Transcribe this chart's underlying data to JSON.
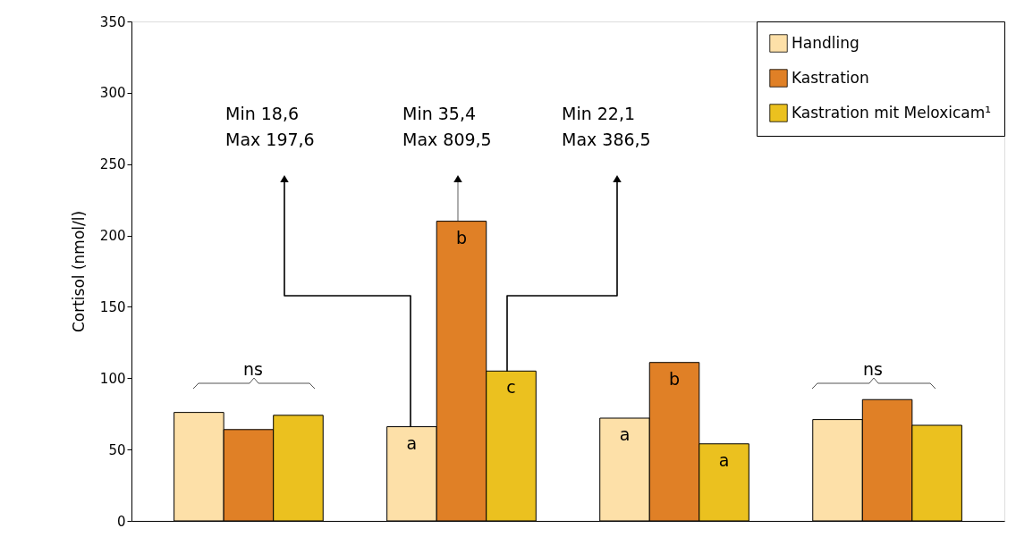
{
  "chart_data": {
    "type": "bar",
    "ylabel": "Cortisol (nmol/l)",
    "categories": [
      null,
      null,
      null,
      null
    ],
    "series": [
      {
        "name": "Handling",
        "color": "#fde0a8",
        "values": [
          76,
          66,
          72,
          71
        ],
        "value_labels": [
          null,
          "a",
          "a",
          null
        ]
      },
      {
        "name": "Kastration",
        "color": "#e08026",
        "values": [
          64,
          210,
          111,
          85
        ],
        "value_labels": [
          null,
          "b",
          "b",
          null
        ]
      },
      {
        "name": "Kastration mit Meloxicam¹",
        "color": "#ebc11f",
        "values": [
          74,
          105,
          54,
          67
        ],
        "value_labels": [
          null,
          "c",
          "a",
          null
        ]
      }
    ],
    "ylim": [
      0,
      350
    ],
    "yticks": [
      0,
      50,
      100,
      150,
      200,
      250,
      300,
      350
    ],
    "annotations": [
      "ns",
      "Min    18,6\nMax 197,6",
      "Min    35,4\nMax 809,5",
      "Min    22,1\nMax 386,5",
      "ns"
    ],
    "legend": "top right",
    "grid": false
  }
}
